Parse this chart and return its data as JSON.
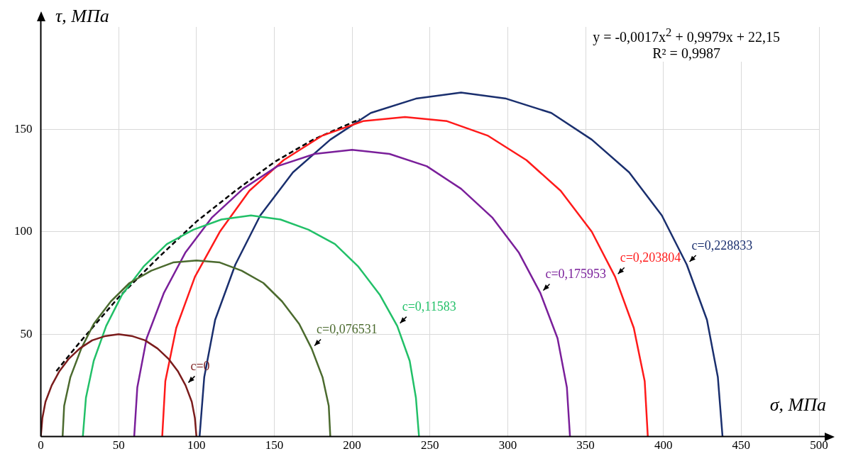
{
  "chart_data": {
    "type": "line",
    "xlabel": "σ, МПа",
    "ylabel": "τ, МПа",
    "annotations": [
      "y = -0,0017x$^{2}$ + 0,9979x + 22,15",
      "R² = 0,9987"
    ],
    "xlim": [
      0,
      500
    ],
    "xticks": [
      0,
      50,
      100,
      150,
      200,
      250,
      300,
      350,
      400,
      450,
      500
    ],
    "ylim": [
      0,
      200
    ],
    "yticks": [
      50,
      100,
      150
    ],
    "grid": true,
    "legend": false,
    "marker": "none",
    "series": [
      {
        "name": "c=0",
        "color": "#7b1c1c",
        "x": [
          0,
          1,
          3,
          7,
          12,
          18,
          25,
          33,
          41,
          50,
          59,
          67,
          75,
          82,
          88,
          93,
          97,
          99,
          100
        ],
        "values": [
          0,
          9,
          17,
          25,
          32,
          38,
          43,
          47,
          49,
          50,
          49,
          47,
          43,
          38,
          32,
          25,
          17,
          9,
          0
        ]
      },
      {
        "name": "c=0,076531",
        "color": "#4b6a2e",
        "x": [
          14,
          15,
          19,
          26,
          34,
          45,
          57,
          71,
          85,
          100,
          115,
          129,
          143,
          155,
          166,
          174,
          181,
          185,
          186
        ],
        "values": [
          0,
          15,
          29,
          43,
          55,
          66,
          75,
          81,
          85,
          86,
          85,
          81,
          75,
          66,
          55,
          43,
          29,
          15,
          0
        ]
      },
      {
        "name": "c=0,11583",
        "color": "#22c068",
        "x": [
          27,
          29,
          34,
          42,
          52,
          66,
          81,
          98,
          116,
          135,
          154,
          172,
          189,
          204,
          218,
          229,
          237,
          241,
          243
        ],
        "values": [
          0,
          19,
          37,
          54,
          69,
          83,
          94,
          101,
          106,
          108,
          106,
          101,
          94,
          83,
          69,
          54,
          37,
          19,
          0
        ]
      },
      {
        "name": "c=0,175953",
        "color": "#7a1f9a",
        "x": [
          60,
          62,
          68,
          79,
          93,
          110,
          130,
          152,
          176,
          200,
          224,
          248,
          270,
          290,
          307,
          321,
          332,
          338,
          340
        ],
        "values": [
          0,
          24,
          48,
          70,
          90,
          107,
          121,
          132,
          138,
          140,
          138,
          132,
          121,
          107,
          90,
          70,
          48,
          24,
          0
        ]
      },
      {
        "name": "c=0,203804",
        "color": "#ff1a1a",
        "x": [
          78,
          80,
          87,
          99,
          115,
          134,
          156,
          181,
          207,
          234,
          261,
          287,
          312,
          334,
          354,
          369,
          381,
          388,
          390
        ],
        "values": [
          0,
          27,
          53,
          78,
          100,
          120,
          135,
          147,
          154,
          156,
          154,
          147,
          135,
          120,
          100,
          78,
          53,
          27,
          0
        ]
      },
      {
        "name": "c=0,228833",
        "color": "#1a2f6e",
        "x": [
          102,
          105,
          112,
          125,
          141,
          162,
          186,
          212,
          241,
          270,
          299,
          328,
          354,
          378,
          399,
          415,
          428,
          435,
          438
        ],
        "values": [
          0,
          29,
          57,
          84,
          108,
          129,
          145,
          158,
          165,
          168,
          165,
          158,
          145,
          129,
          108,
          84,
          57,
          29,
          0
        ]
      },
      {
        "type": "line",
        "color": "#000000",
        "line_style": "dashed",
        "x": [
          10,
          25,
          50,
          75,
          100,
          125,
          150,
          175,
          205
        ],
        "values": [
          32,
          46,
          68,
          87,
          105,
          120,
          134,
          145,
          155
        ]
      }
    ]
  }
}
